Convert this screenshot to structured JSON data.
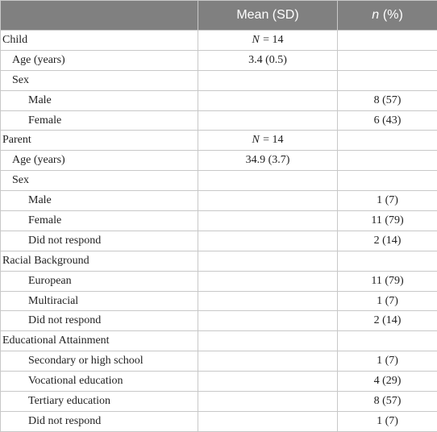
{
  "table": {
    "header": {
      "col2": "Mean (SD)",
      "col3": {
        "italic": "n",
        "rest": "(%)"
      }
    },
    "rows": [
      {
        "label": "Child",
        "indent": 0,
        "mean": {
          "italic": "N",
          "rest": "= 14"
        }
      },
      {
        "label": "Age (years)",
        "indent": 1,
        "mean": "3.4 (0.5)"
      },
      {
        "label": "Sex",
        "indent": 1
      },
      {
        "label": "Male",
        "indent": 2,
        "n": "8 (57)"
      },
      {
        "label": "Female",
        "indent": 2,
        "n": "6 (43)"
      },
      {
        "label": "Parent",
        "indent": 0,
        "mean": {
          "italic": "N",
          "rest": "= 14"
        }
      },
      {
        "label": "Age (years)",
        "indent": 1,
        "mean": "34.9 (3.7)"
      },
      {
        "label": "Sex",
        "indent": 1
      },
      {
        "label": "Male",
        "indent": 2,
        "n": "1 (7)"
      },
      {
        "label": "Female",
        "indent": 2,
        "n": "11 (79)"
      },
      {
        "label": "Did not respond",
        "indent": 2,
        "n": "2 (14)"
      },
      {
        "label": "Racial Background",
        "indent": 0
      },
      {
        "label": "European",
        "indent": 2,
        "n": "11 (79)"
      },
      {
        "label": "Multiracial",
        "indent": 2,
        "n": "1 (7)"
      },
      {
        "label": "Did not respond",
        "indent": 2,
        "n": "2 (14)"
      },
      {
        "label": "Educational Attainment",
        "indent": 0
      },
      {
        "label": "Secondary or high school",
        "indent": 2,
        "n": "1 (7)"
      },
      {
        "label": "Vocational education",
        "indent": 2,
        "n": "4 (29)"
      },
      {
        "label": "Tertiary education",
        "indent": 2,
        "n": "8 (57)"
      },
      {
        "label": "Did not respond",
        "indent": 2,
        "n": "1 (7)"
      }
    ]
  }
}
